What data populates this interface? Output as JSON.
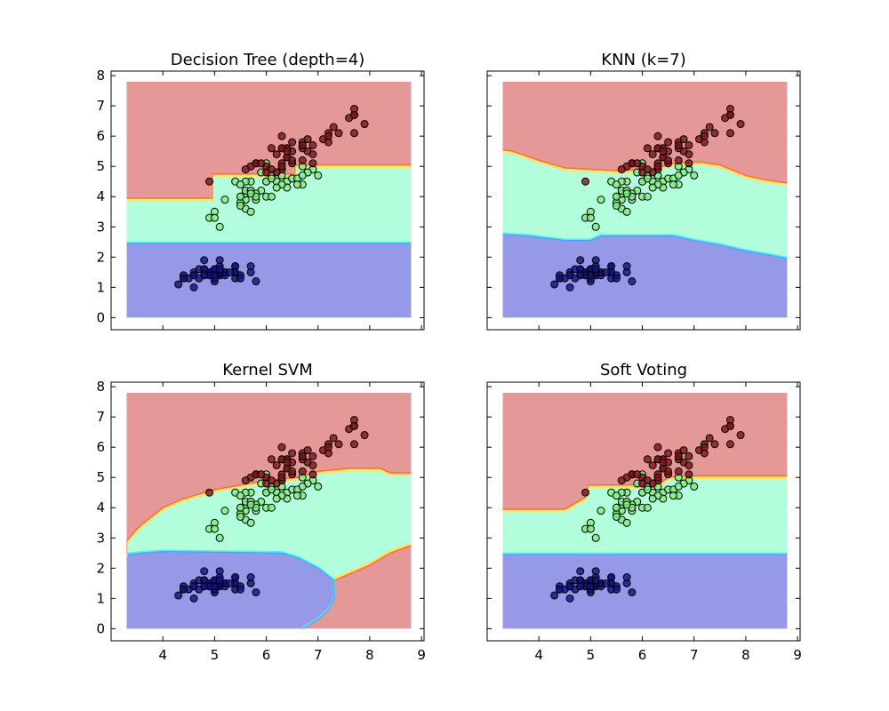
{
  "figure": {
    "background": "#ffffff"
  },
  "colors": {
    "region_class_0": "#9698e8",
    "region_class_1": "#b2fedc",
    "region_class_2": "#e59898",
    "point_class_0": "#12127f",
    "point_class_1": "#7ded7d",
    "point_class_2": "#7e1414",
    "boundary_red_orange": "#ff6a3a",
    "boundary_yellow": "#f5e66a",
    "boundary_blue": "#3aa8ff",
    "boundary_cyan": "#62e8f0"
  },
  "chart_data": [
    {
      "type": "scatter",
      "title": "Decision Tree (depth=4)",
      "xlabel": "",
      "ylabel": "",
      "xlim": [
        3.0,
        9.05
      ],
      "ylim": [
        -0.4,
        8.15
      ],
      "xticks": [
        "4",
        "5",
        "6",
        "7",
        "8",
        "9"
      ],
      "yticks": [
        "0",
        "1",
        "2",
        "3",
        "4",
        "5",
        "6",
        "7",
        "8"
      ],
      "show_xticklabels": false,
      "show_yticklabels": true,
      "grid": false,
      "decision_region": {
        "x_range": [
          3.3,
          8.8
        ],
        "y_range": [
          0,
          7.8
        ]
      },
      "boundaries": {
        "class0_class1": [
          [
            3.3,
            2.45
          ],
          [
            8.8,
            2.45
          ]
        ],
        "class1_class2": [
          [
            3.3,
            3.95
          ],
          [
            4.95,
            3.95
          ],
          [
            4.95,
            4.75
          ],
          [
            6.55,
            4.75
          ],
          [
            6.55,
            5.05
          ],
          [
            8.8,
            5.05
          ]
        ],
        "class2_lower": null
      }
    },
    {
      "type": "scatter",
      "title": "KNN (k=7)",
      "xlabel": "",
      "ylabel": "",
      "xlim": [
        3.0,
        9.05
      ],
      "ylim": [
        -0.4,
        8.15
      ],
      "xticks": [
        "4",
        "5",
        "6",
        "7",
        "8",
        "9"
      ],
      "yticks": [
        "0",
        "1",
        "2",
        "3",
        "4",
        "5",
        "6",
        "7",
        "8"
      ],
      "show_xticklabels": false,
      "show_yticklabels": false,
      "grid": false,
      "decision_region": {
        "x_range": [
          3.3,
          8.8
        ],
        "y_range": [
          0,
          7.8
        ]
      },
      "boundaries": {
        "class0_class1": [
          [
            3.3,
            2.75
          ],
          [
            3.8,
            2.7
          ],
          [
            4.5,
            2.55
          ],
          [
            5.0,
            2.55
          ],
          [
            5.2,
            2.7
          ],
          [
            6.6,
            2.7
          ],
          [
            7.0,
            2.55
          ],
          [
            7.5,
            2.4
          ],
          [
            8.0,
            2.2
          ],
          [
            8.5,
            2.05
          ],
          [
            8.8,
            1.95
          ]
        ],
        "class1_class2": [
          [
            3.3,
            5.55
          ],
          [
            3.5,
            5.5
          ],
          [
            4.0,
            5.2
          ],
          [
            4.5,
            4.95
          ],
          [
            5.6,
            4.85
          ],
          [
            5.9,
            4.9
          ],
          [
            6.3,
            4.95
          ],
          [
            6.6,
            5.1
          ],
          [
            7.1,
            5.15
          ],
          [
            7.5,
            5.05
          ],
          [
            8.0,
            4.7
          ],
          [
            8.4,
            4.55
          ],
          [
            8.8,
            4.45
          ]
        ],
        "class2_lower": null
      }
    },
    {
      "type": "scatter",
      "title": "Kernel SVM",
      "xlabel": "",
      "ylabel": "",
      "xlim": [
        3.0,
        9.05
      ],
      "ylim": [
        -0.4,
        8.15
      ],
      "xticks": [
        "4",
        "5",
        "6",
        "7",
        "8",
        "9"
      ],
      "yticks": [
        "0",
        "1",
        "2",
        "3",
        "4",
        "5",
        "6",
        "7",
        "8"
      ],
      "show_xticklabels": true,
      "show_yticklabels": true,
      "grid": false,
      "decision_region": {
        "x_range": [
          3.3,
          8.8
        ],
        "y_range": [
          0,
          7.8
        ]
      },
      "boundaries": {
        "class0_class1": [
          [
            3.3,
            2.45
          ],
          [
            3.6,
            2.5
          ],
          [
            4.0,
            2.55
          ],
          [
            6.3,
            2.5
          ],
          [
            6.6,
            2.35
          ],
          [
            7.0,
            2.0
          ],
          [
            7.3,
            1.6
          ],
          [
            7.32,
            1.0
          ],
          [
            7.2,
            0.6
          ],
          [
            7.0,
            0.3
          ],
          [
            6.7,
            0.0
          ]
        ],
        "class1_class2": [
          [
            3.3,
            2.45
          ],
          [
            3.3,
            2.9
          ],
          [
            3.5,
            3.3
          ],
          [
            3.7,
            3.6
          ],
          [
            4.0,
            4.0
          ],
          [
            4.4,
            4.3
          ],
          [
            5.0,
            4.6
          ],
          [
            5.5,
            4.75
          ],
          [
            6.0,
            4.9
          ],
          [
            6.6,
            5.0
          ],
          [
            7.0,
            5.2
          ],
          [
            7.6,
            5.3
          ],
          [
            8.2,
            5.3
          ],
          [
            8.4,
            5.15
          ],
          [
            8.8,
            5.15
          ]
        ],
        "class2_lower": [
          [
            7.32,
            1.6
          ],
          [
            7.6,
            1.8
          ],
          [
            8.0,
            2.1
          ],
          [
            8.4,
            2.5
          ],
          [
            8.8,
            2.75
          ]
        ]
      }
    },
    {
      "type": "scatter",
      "title": "Soft Voting",
      "xlabel": "",
      "ylabel": "",
      "xlim": [
        3.0,
        9.05
      ],
      "ylim": [
        -0.4,
        8.15
      ],
      "xticks": [
        "4",
        "5",
        "6",
        "7",
        "8",
        "9"
      ],
      "yticks": [
        "0",
        "1",
        "2",
        "3",
        "4",
        "5",
        "6",
        "7",
        "8"
      ],
      "show_xticklabels": true,
      "show_yticklabels": false,
      "grid": false,
      "decision_region": {
        "x_range": [
          3.3,
          8.8
        ],
        "y_range": [
          0,
          7.8
        ]
      },
      "boundaries": {
        "class0_class1": [
          [
            3.3,
            2.45
          ],
          [
            8.8,
            2.45
          ]
        ],
        "class1_class2": [
          [
            3.3,
            3.95
          ],
          [
            4.5,
            3.95
          ],
          [
            4.9,
            4.35
          ],
          [
            4.95,
            4.75
          ],
          [
            6.3,
            4.75
          ],
          [
            6.5,
            5.0
          ],
          [
            6.7,
            5.05
          ],
          [
            8.8,
            5.05
          ]
        ],
        "class2_lower": null
      }
    }
  ],
  "points": {
    "class_0": [
      [
        5.1,
        1.4
      ],
      [
        4.9,
        1.4
      ],
      [
        4.7,
        1.3
      ],
      [
        4.6,
        1.5
      ],
      [
        5.0,
        1.4
      ],
      [
        5.4,
        1.7
      ],
      [
        4.6,
        1.4
      ],
      [
        5.0,
        1.5
      ],
      [
        4.4,
        1.4
      ],
      [
        4.9,
        1.5
      ],
      [
        5.4,
        1.5
      ],
      [
        4.8,
        1.6
      ],
      [
        4.8,
        1.4
      ],
      [
        4.3,
        1.1
      ],
      [
        5.8,
        1.2
      ],
      [
        5.7,
        1.5
      ],
      [
        5.4,
        1.3
      ],
      [
        5.1,
        1.4
      ],
      [
        5.7,
        1.7
      ],
      [
        5.1,
        1.5
      ],
      [
        5.4,
        1.7
      ],
      [
        5.1,
        1.5
      ],
      [
        4.6,
        1.0
      ],
      [
        5.1,
        1.7
      ],
      [
        4.8,
        1.9
      ],
      [
        5.0,
        1.6
      ],
      [
        5.0,
        1.6
      ],
      [
        5.2,
        1.5
      ],
      [
        5.2,
        1.4
      ],
      [
        4.7,
        1.6
      ],
      [
        4.8,
        1.6
      ],
      [
        5.4,
        1.5
      ],
      [
        5.2,
        1.5
      ],
      [
        5.5,
        1.4
      ],
      [
        4.9,
        1.5
      ],
      [
        5.0,
        1.2
      ],
      [
        5.5,
        1.3
      ],
      [
        4.9,
        1.4
      ],
      [
        4.4,
        1.3
      ],
      [
        5.1,
        1.5
      ],
      [
        5.0,
        1.3
      ],
      [
        4.5,
        1.3
      ],
      [
        4.4,
        1.3
      ],
      [
        5.0,
        1.6
      ],
      [
        5.1,
        1.9
      ],
      [
        4.8,
        1.4
      ],
      [
        5.1,
        1.6
      ],
      [
        4.6,
        1.4
      ],
      [
        5.3,
        1.5
      ],
      [
        5.0,
        1.4
      ]
    ],
    "class_1": [
      [
        7.0,
        4.7
      ],
      [
        6.4,
        4.5
      ],
      [
        6.9,
        4.9
      ],
      [
        5.5,
        4.0
      ],
      [
        6.5,
        4.6
      ],
      [
        5.7,
        4.5
      ],
      [
        6.3,
        4.7
      ],
      [
        4.9,
        3.3
      ],
      [
        6.6,
        4.6
      ],
      [
        5.2,
        3.9
      ],
      [
        5.0,
        3.5
      ],
      [
        5.9,
        4.2
      ],
      [
        6.0,
        4.0
      ],
      [
        6.1,
        4.7
      ],
      [
        5.6,
        3.6
      ],
      [
        6.7,
        4.4
      ],
      [
        5.6,
        4.5
      ],
      [
        5.8,
        4.1
      ],
      [
        6.2,
        4.5
      ],
      [
        5.6,
        3.9
      ],
      [
        5.9,
        4.8
      ],
      [
        6.1,
        4.0
      ],
      [
        6.3,
        4.9
      ],
      [
        6.1,
        4.7
      ],
      [
        6.4,
        4.3
      ],
      [
        6.6,
        4.4
      ],
      [
        6.8,
        4.8
      ],
      [
        6.7,
        5.0
      ],
      [
        6.0,
        4.5
      ],
      [
        5.7,
        3.5
      ],
      [
        5.5,
        3.8
      ],
      [
        5.5,
        3.7
      ],
      [
        5.8,
        3.9
      ],
      [
        6.0,
        5.1
      ],
      [
        5.4,
        4.5
      ],
      [
        6.0,
        4.5
      ],
      [
        6.7,
        4.7
      ],
      [
        6.3,
        4.4
      ],
      [
        5.6,
        4.1
      ],
      [
        5.5,
        4.0
      ],
      [
        5.5,
        4.4
      ],
      [
        6.1,
        4.6
      ],
      [
        5.8,
        4.0
      ],
      [
        5.0,
        3.3
      ],
      [
        5.6,
        4.2
      ],
      [
        5.7,
        4.2
      ],
      [
        5.7,
        4.2
      ],
      [
        6.2,
        4.3
      ],
      [
        5.1,
        3.0
      ],
      [
        5.7,
        4.1
      ]
    ],
    "class_2": [
      [
        6.3,
        6.0
      ],
      [
        5.8,
        5.1
      ],
      [
        7.1,
        5.9
      ],
      [
        6.3,
        5.6
      ],
      [
        6.5,
        5.8
      ],
      [
        7.6,
        6.6
      ],
      [
        4.9,
        4.5
      ],
      [
        7.3,
        6.3
      ],
      [
        6.7,
        5.8
      ],
      [
        7.2,
        6.1
      ],
      [
        6.5,
        5.1
      ],
      [
        6.4,
        5.3
      ],
      [
        6.8,
        5.5
      ],
      [
        5.7,
        5.0
      ],
      [
        5.8,
        5.1
      ],
      [
        6.4,
        5.3
      ],
      [
        6.5,
        5.5
      ],
      [
        7.7,
        6.7
      ],
      [
        7.7,
        6.9
      ],
      [
        6.0,
        5.0
      ],
      [
        6.9,
        5.7
      ],
      [
        5.6,
        4.9
      ],
      [
        7.7,
        6.7
      ],
      [
        6.3,
        4.9
      ],
      [
        6.7,
        5.7
      ],
      [
        7.2,
        6.0
      ],
      [
        6.2,
        4.8
      ],
      [
        6.1,
        4.9
      ],
      [
        6.4,
        5.6
      ],
      [
        7.2,
        5.8
      ],
      [
        7.4,
        6.1
      ],
      [
        7.9,
        6.4
      ],
      [
        6.4,
        5.6
      ],
      [
        6.3,
        5.1
      ],
      [
        6.1,
        5.6
      ],
      [
        7.7,
        6.1
      ],
      [
        6.3,
        5.6
      ],
      [
        6.4,
        5.5
      ],
      [
        6.0,
        4.8
      ],
      [
        6.9,
        5.4
      ],
      [
        6.7,
        5.6
      ],
      [
        6.9,
        5.1
      ],
      [
        5.8,
        5.1
      ],
      [
        6.8,
        5.9
      ],
      [
        6.7,
        5.7
      ],
      [
        6.7,
        5.2
      ],
      [
        6.3,
        5.0
      ],
      [
        6.5,
        5.2
      ],
      [
        6.2,
        5.4
      ],
      [
        5.9,
        5.1
      ]
    ]
  }
}
